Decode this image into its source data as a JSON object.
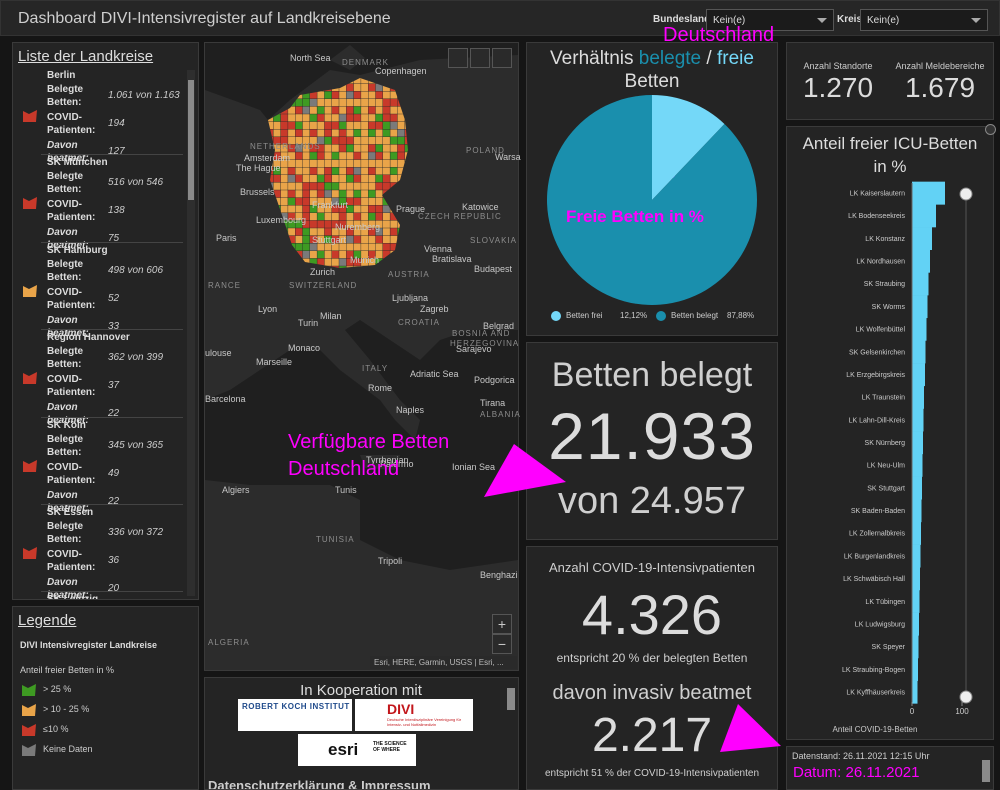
{
  "header": {
    "title": "Dashboard DIVI-Intensivregister auf Landkreisebene",
    "filters": [
      {
        "label": "Bundesland",
        "value": "Kein(e)"
      },
      {
        "label": "Kreis",
        "value": "Kein(e)"
      }
    ]
  },
  "list": {
    "title": "Liste der Landkreise",
    "field_labels": [
      "Belegte Betten:",
      "COVID-Patienten:",
      "Davon beatmet:"
    ],
    "items": [
      {
        "name": "Berlin",
        "color": "#c8392a",
        "values": [
          "1.061 von 1.163",
          "194",
          "127"
        ]
      },
      {
        "name": "SK München",
        "color": "#c8392a",
        "values": [
          "516 von 546",
          "138",
          "75"
        ]
      },
      {
        "name": "SK Hamburg",
        "color": "#e9a449",
        "values": [
          "498 von 606",
          "52",
          "33"
        ]
      },
      {
        "name": "Region Hannover",
        "color": "#c8392a",
        "values": [
          "362 von 399",
          "37",
          "22"
        ]
      },
      {
        "name": "SK Köln",
        "color": "#c8392a",
        "values": [
          "345 von 365",
          "49",
          "22"
        ]
      },
      {
        "name": "SK Essen",
        "color": "#c8392a",
        "values": [
          "336 von 372",
          "36",
          "20"
        ]
      },
      {
        "name": "SK Leipzig"
      }
    ]
  },
  "legend": {
    "title": "Legende",
    "layer": "DIVI Intensivregister Landkreise",
    "field": "Anteil freier Betten in %",
    "items": [
      {
        "label": "> 25 %",
        "color": "#3e9a22"
      },
      {
        "label": "> 10 - 25 %",
        "color": "#e9a449"
      },
      {
        "label": "≤10 %",
        "color": "#c8392a"
      },
      {
        "label": "Keine Daten",
        "color": "#7a7a7a"
      }
    ]
  },
  "map": {
    "labels": [
      "North Sea",
      "DENMARK",
      "Copenhagen",
      "NETHERLANDS",
      "Amsterdam",
      "The Hague",
      "Brussels",
      "Luxembourg",
      "Paris",
      "Frankfurt",
      "Prague",
      "CZECH REPUBLIC",
      "Katowice",
      "POLAND",
      "Warsa",
      "SLOVAKIA",
      "Vienna",
      "Bratislava",
      "Budapest",
      "AUSTRIA",
      "Zurich",
      "SWITZERLAND",
      "RANCE",
      "Lyon",
      "Milan",
      "Turin",
      "Ljubljana",
      "Zagreb",
      "CROATIA",
      "Belgrad",
      "BOSNIA AND",
      "HERZEGOVINA",
      "Sarajevo",
      "Monaco",
      "Marseille",
      "ITALY",
      "ulouse",
      "Adriatic Sea",
      "Podgorica",
      "Rome",
      "Tirana",
      "ALBANIA",
      "Naples",
      "Barcelona",
      "Tyrrhenian",
      "Ionian Sea",
      "Palermo",
      "Tunis",
      "Algiers",
      "TUNISIA",
      "Tripoli",
      "Benghazi",
      "ALGERIA",
      "Nuremberg",
      "Munich",
      "Stuttgart"
    ],
    "attribution": "Esri, HERE, Garmin, USGS | Esri, ...",
    "zoom": [
      "+",
      "−"
    ]
  },
  "chart_data": [
    {
      "type": "pie",
      "title": [
        "Verhältnis",
        "belegte",
        "/",
        "freie",
        "Betten"
      ],
      "categories": [
        "Betten frei",
        "Betten belegt"
      ],
      "values": [
        12.12,
        87.88
      ],
      "value_labels": [
        "12,12%",
        "87,88%"
      ],
      "colors": [
        "#74d8f8",
        "#1a8fad"
      ]
    },
    {
      "type": "bar",
      "orientation": "horizontal",
      "title": "Anteil freier ICU-Betten in %",
      "categories": [
        "LK Kaiserslautern",
        "LK Bodenseekreis",
        "LK Konstanz",
        "LK Nordhausen",
        "SK Straubing",
        "SK Worms",
        "LK Wolfenbüttel",
        "SK Gelsenkirchen",
        "LK Erzgebirgskreis",
        "LK Traunstein",
        "LK Lahn-Dill-Kreis",
        "SK Nürnberg",
        "LK Neu-Ulm",
        "SK Stuttgart",
        "SK Baden-Baden",
        "LK Zollernalbkreis",
        "LK Burgenlandkreis",
        "LK Schwäbisch Hall",
        "LK Tübingen",
        "LK Ludwigsburg",
        "SK Speyer",
        "LK Straubing-Bogen",
        "LK Kyffhäuserkreis"
      ],
      "values": [
        66,
        48,
        40,
        36,
        33,
        31,
        29,
        27,
        26,
        24,
        23,
        22,
        21,
        20,
        19,
        18,
        17,
        16,
        15,
        14,
        13,
        12,
        11
      ],
      "color": "#62d2f5",
      "xlim": [
        0,
        100
      ],
      "xticks": [
        0,
        100
      ],
      "xlabel": "Anteil COVID-19-Betten"
    }
  ],
  "beds": {
    "title": "Betten belegt",
    "value": "21.933",
    "total": "von 24.957"
  },
  "covid": {
    "title": "Anzahl COVID-19-Intensivpatienten",
    "value": "4.326",
    "note": "entspricht 20 % der belegten Betten",
    "ventilated_title": "davon invasiv beatmet",
    "ventilated_value": "2.217",
    "ventilated_note": "entspricht 51 % der COVID-19-Intensivpatienten"
  },
  "counts": [
    {
      "label": "Anzahl Standorte",
      "value": "1.270"
    },
    {
      "label": "Anzahl Meldebereiche",
      "value": "1.679"
    }
  ],
  "partners": {
    "title": "In Kooperation mit",
    "rki": "ROBERT KOCH INSTITUT",
    "divi": "DIVI",
    "divi_text": "Deutsche Interdisziplinäre Vereinigung für Intensiv- und Notfallmedizin",
    "esri": "esri",
    "esri_text": "THE SCIENCE OF WHERE",
    "link": "Datenschutzerklärung & Impressum"
  },
  "status": "Datenstand: 26.11.2021 12:15 Uhr",
  "annotations": [
    "Deutschland",
    "Freie Betten in %",
    "Verfügbare Betten",
    "Deutschland",
    "Datum: 26.11.2021"
  ]
}
